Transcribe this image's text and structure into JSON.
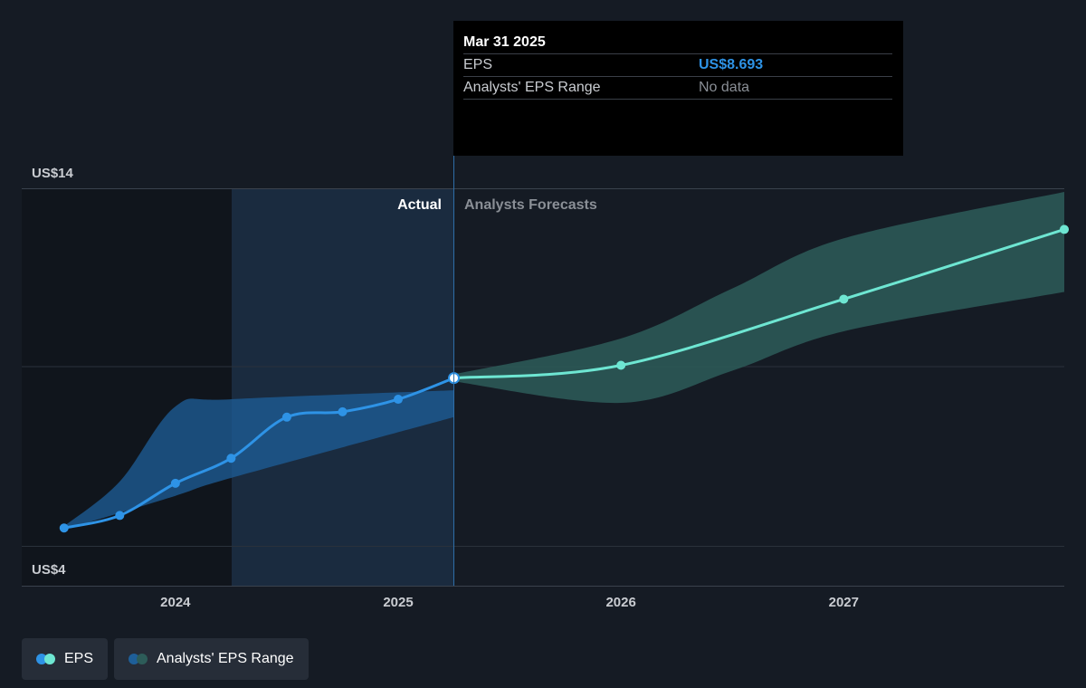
{
  "tooltip": {
    "date": "Mar 31 2025",
    "eps_label": "EPS",
    "eps_value": "US$8.693",
    "range_label": "Analysts' EPS Range",
    "range_value": "No data"
  },
  "labels": {
    "actual": "Actual",
    "forecast": "Analysts Forecasts"
  },
  "legend": {
    "eps": "EPS",
    "range": "Analysts' EPS Range"
  },
  "colors": {
    "background": "#151b24",
    "eps_actual": "#2e93e6",
    "eps_forecast": "#6ee6d2",
    "range_actual": "#1e5f99",
    "range_forecast": "#2d5c59"
  },
  "chart_data": {
    "type": "line",
    "ylim": [
      4,
      14
    ],
    "yticks": [
      {
        "value": 14,
        "label": "US$14"
      },
      {
        "value": 4,
        "label": "US$4"
      }
    ],
    "xticks": [
      {
        "value": 2024.0,
        "label": "2024"
      },
      {
        "value": 2025.0,
        "label": "2025"
      },
      {
        "value": 2026.0,
        "label": "2026"
      },
      {
        "value": 2027.0,
        "label": "2027"
      }
    ],
    "xlim": [
      2023.31,
      2027.99
    ],
    "divider_x": 2025.25,
    "highlight_start_x": 2024.25,
    "series": [
      {
        "name": "EPS",
        "segment": "actual",
        "points": [
          [
            2023.5,
            4.5
          ],
          [
            2023.75,
            4.85
          ],
          [
            2024.0,
            5.75
          ],
          [
            2024.25,
            6.45
          ],
          [
            2024.5,
            7.6
          ],
          [
            2024.75,
            7.75
          ],
          [
            2025.0,
            8.1
          ],
          [
            2025.25,
            8.693
          ]
        ]
      },
      {
        "name": "EPS",
        "segment": "forecast",
        "points": [
          [
            2025.25,
            8.693
          ],
          [
            2026.0,
            9.05
          ],
          [
            2027.0,
            10.9
          ],
          [
            2027.99,
            12.85
          ]
        ]
      }
    ],
    "range": [
      {
        "segment": "actual",
        "low": [
          [
            2023.5,
            4.45
          ],
          [
            2024.0,
            5.4
          ],
          [
            2024.25,
            5.9
          ],
          [
            2025.25,
            7.6
          ]
        ],
        "high": [
          [
            2023.5,
            4.55
          ],
          [
            2023.75,
            5.8
          ],
          [
            2024.0,
            7.9
          ],
          [
            2024.25,
            8.1
          ],
          [
            2025.25,
            8.35
          ]
        ]
      },
      {
        "segment": "forecast",
        "low": [
          [
            2025.25,
            8.6
          ],
          [
            2026.0,
            8.0
          ],
          [
            2026.5,
            8.9
          ],
          [
            2027.0,
            10.0
          ],
          [
            2027.99,
            11.1
          ]
        ],
        "high": [
          [
            2025.25,
            8.8
          ],
          [
            2026.0,
            9.8
          ],
          [
            2026.5,
            11.2
          ],
          [
            2027.0,
            12.6
          ],
          [
            2027.99,
            13.9
          ]
        ]
      }
    ],
    "highlight_point": {
      "x": 2025.25,
      "y": 8.693
    }
  }
}
